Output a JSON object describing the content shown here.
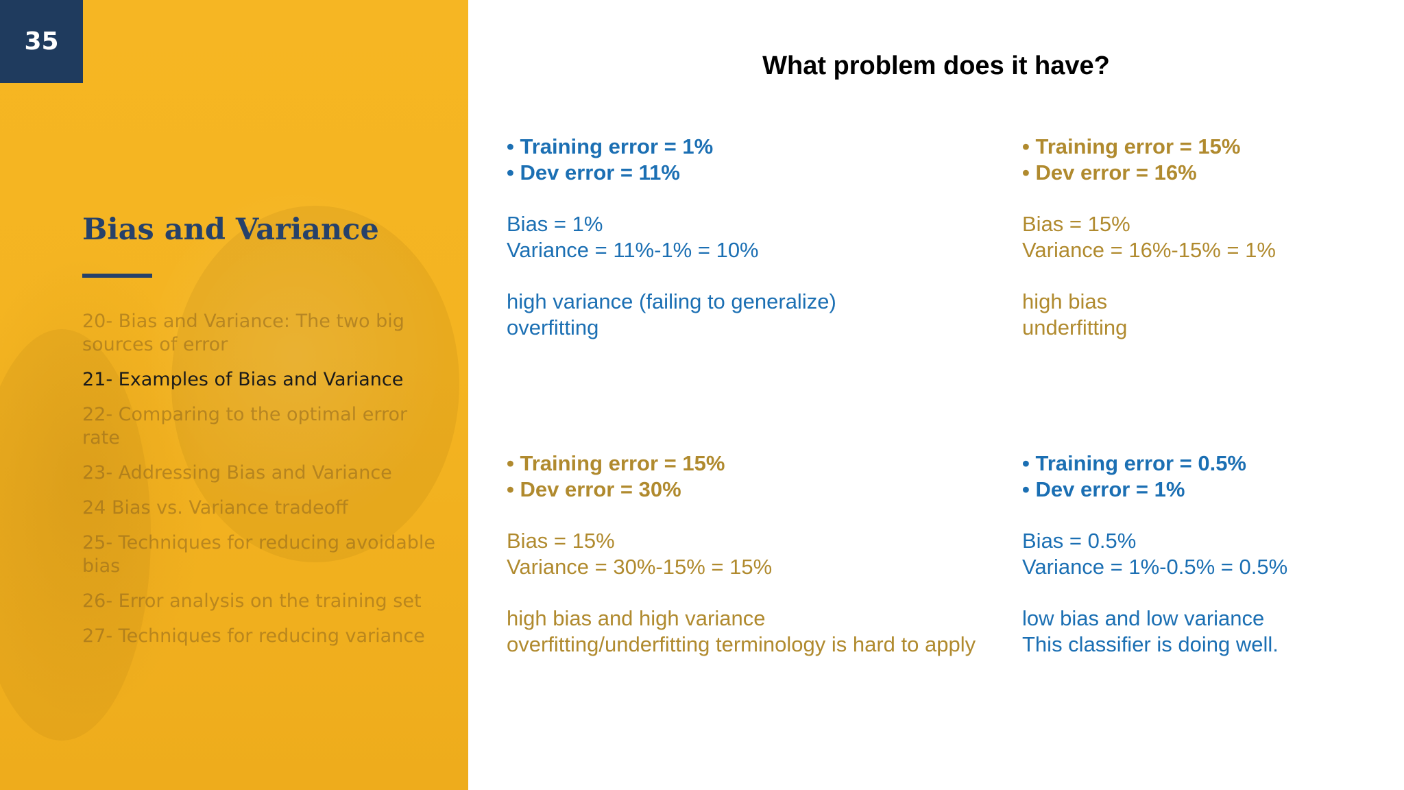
{
  "slide": {
    "page_number": "35",
    "section_title": "Bias and Variance",
    "heading": "What problem does it have?"
  },
  "toc": [
    {
      "label": "20- Bias and Variance: The two big sources of error",
      "current": false
    },
    {
      "label": "21- Examples of Bias and Variance",
      "current": true
    },
    {
      "label": "22- Comparing to the optimal error rate",
      "current": false
    },
    {
      "label": "23- Addressing Bias and Variance",
      "current": false
    },
    {
      "label": "24 Bias vs. Variance tradeoff",
      "current": false
    },
    {
      "label": "25- Techniques for reducing avoidable bias",
      "current": false
    },
    {
      "label": "26- Error analysis on the training set",
      "current": false
    },
    {
      "label": "27- Techniques for reducing variance",
      "current": false
    }
  ],
  "cases": [
    {
      "color": "#1b6fb3",
      "training": "• Training error = 1%",
      "dev": "• Dev error = 11%",
      "bias": "Bias = 1%",
      "variance": "Variance = 11%-1% = 10%",
      "diagnosis_1": "high variance (failing to generalize)",
      "diagnosis_2": "overfitting"
    },
    {
      "color": "#b08a2e",
      "training": "• Training error = 15%",
      "dev": "• Dev error = 16%",
      "bias": "Bias = 15%",
      "variance": "Variance = 16%-15% = 1%",
      "diagnosis_1": "high bias",
      "diagnosis_2": "underfitting"
    },
    {
      "color": "#b08a2e",
      "training": "• Training error = 15%",
      "dev": "• Dev error = 30%",
      "bias": "Bias = 15%",
      "variance": "Variance = 30%-15% = 15%",
      "diagnosis_1": "high bias and high variance",
      "diagnosis_2": "overfitting/underfitting terminology is hard to apply"
    },
    {
      "color": "#1b6fb3",
      "training": "• Training error = 0.5%",
      "dev": "• Dev error = 1%",
      "bias": "Bias = 0.5%",
      "variance": "Variance = 1%-0.5% = 0.5%",
      "diagnosis_1": "low bias and low variance",
      "diagnosis_2": "This classifier is doing well."
    }
  ]
}
